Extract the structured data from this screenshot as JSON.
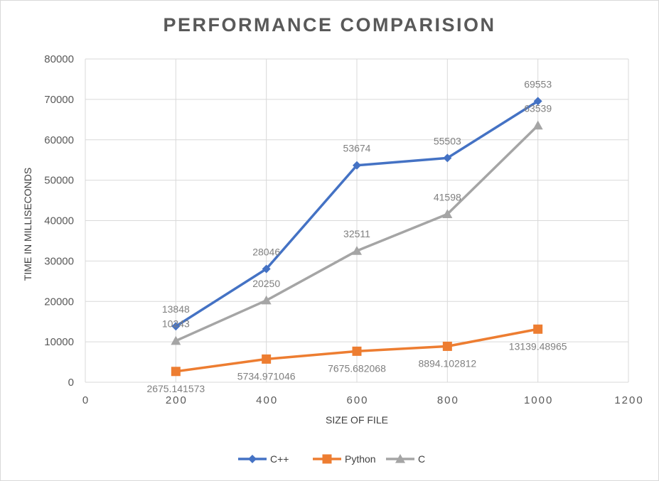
{
  "chart_data": {
    "type": "scatter",
    "title": "PERFORMANCE  COMPARISION",
    "xlabel": "SIZE OF FILE",
    "ylabel": "TIME IN MILLISECONDS",
    "xlim": [
      0,
      1200
    ],
    "ylim": [
      0,
      80000
    ],
    "x_ticks": [
      "0",
      "200",
      "400",
      "600",
      "800",
      "1000",
      "1200"
    ],
    "y_ticks": [
      "0",
      "10000",
      "20000",
      "30000",
      "40000",
      "50000",
      "60000",
      "70000",
      "80000"
    ],
    "grid": true,
    "legend_position": "bottom",
    "x": [
      200,
      400,
      600,
      800,
      1000
    ],
    "series": [
      {
        "name": "C++",
        "color": "#4472c4",
        "marker": "diamond",
        "values": [
          13848,
          28046,
          53674,
          55503,
          69553
        ],
        "labels": [
          "13848",
          "28046",
          "53674",
          "55503",
          "69553"
        ]
      },
      {
        "name": "Python",
        "color": "#ed7d31",
        "marker": "square",
        "values": [
          2675.141573,
          5734.971046,
          7675.682068,
          8894.102812,
          13139.48965
        ],
        "labels": [
          "2675.141573",
          "5734.971046",
          "7675.682068",
          "8894.102812",
          "13139.48965"
        ]
      },
      {
        "name": "C",
        "color": "#a5a5a5",
        "marker": "triangle",
        "values": [
          10243,
          20250,
          32511,
          41598,
          63539
        ],
        "labels": [
          "10243",
          "20250",
          "32511",
          "41598",
          "63539"
        ]
      }
    ]
  }
}
